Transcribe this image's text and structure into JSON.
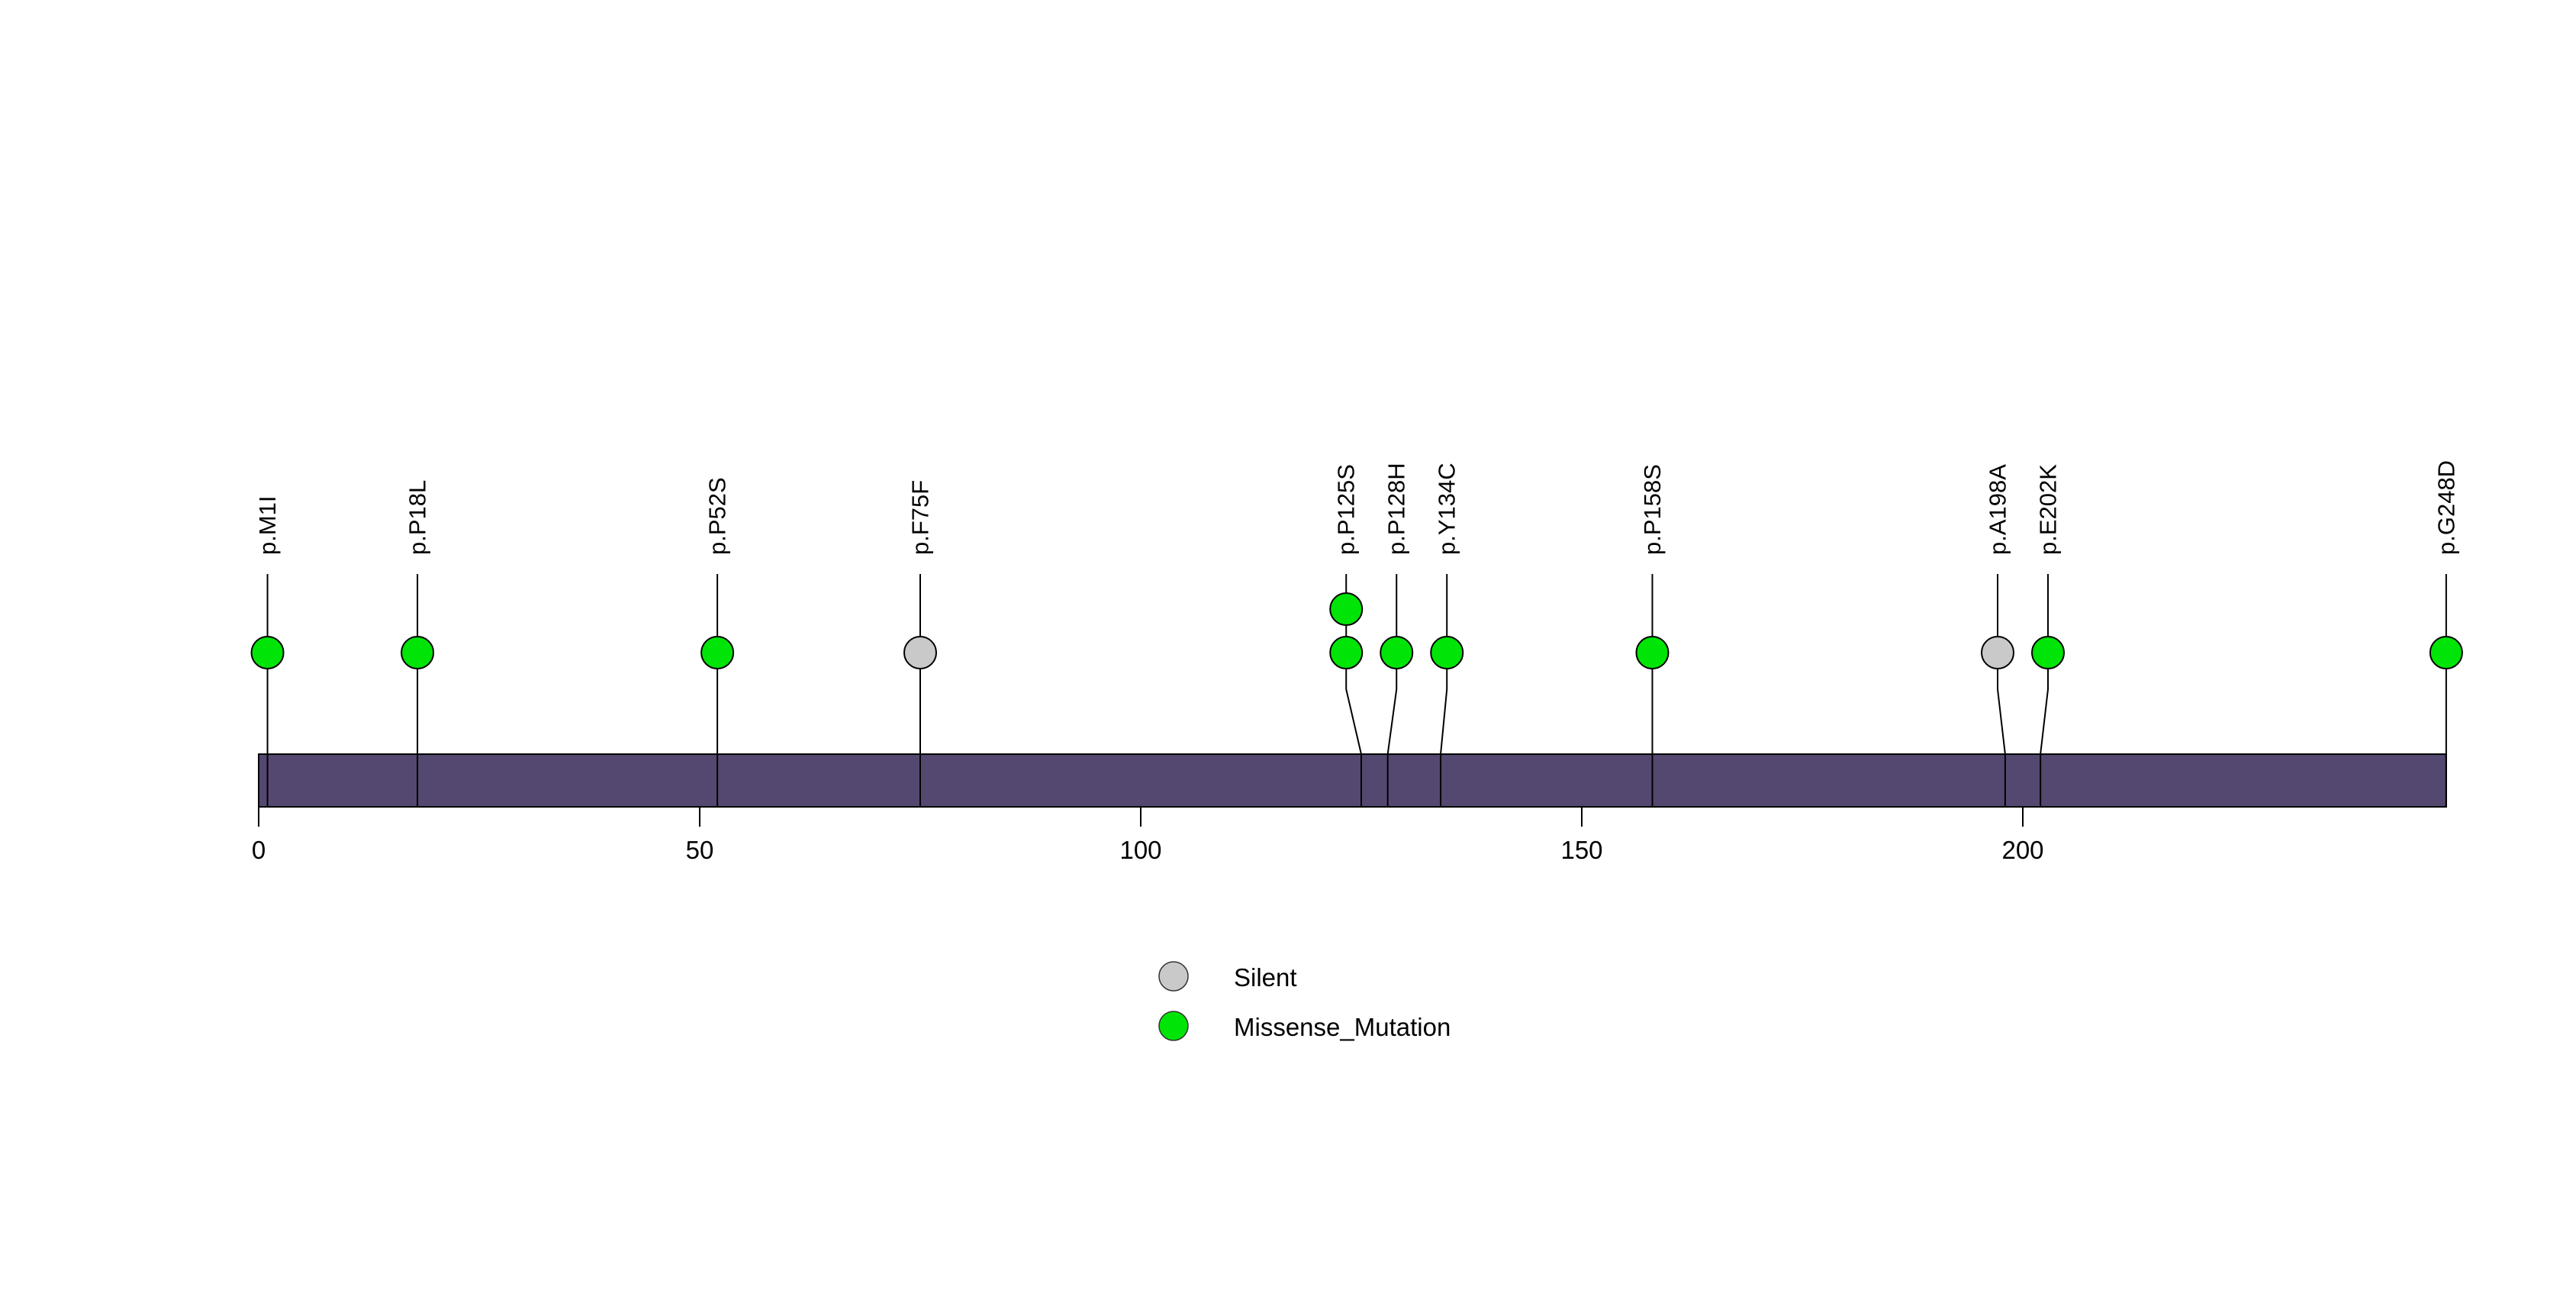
{
  "chart_data": {
    "type": "lollipop",
    "title": "",
    "xlabel": "",
    "ylabel": "",
    "axis_range": [
      0,
      248
    ],
    "axis_tick_labels": [
      "0",
      "50",
      "100",
      "150",
      "200"
    ],
    "axis_tick_values": [
      0,
      50,
      100,
      150,
      200
    ],
    "grid": false,
    "legend_position": "bottom-center",
    "protein": {
      "start": 0,
      "end": 248,
      "bar_color": "#544870"
    },
    "legend": [
      {
        "label": "Silent",
        "color": "#c9c9c9"
      },
      {
        "label": "Missense_Mutation",
        "color": "#00e407"
      }
    ],
    "mutations": [
      {
        "label": "p.M1I",
        "position": 1,
        "type": "Missense_Mutation",
        "count": 1
      },
      {
        "label": "p.P18L",
        "position": 18,
        "type": "Missense_Mutation",
        "count": 1
      },
      {
        "label": "p.P52S",
        "position": 52,
        "type": "Missense_Mutation",
        "count": 1
      },
      {
        "label": "p.F75F",
        "position": 75,
        "type": "Silent",
        "count": 1
      },
      {
        "label": "p.P125S",
        "position": 125,
        "type": "Missense_Mutation",
        "count": 2
      },
      {
        "label": "p.P128H",
        "position": 128,
        "type": "Missense_Mutation",
        "count": 1
      },
      {
        "label": "p.Y134C",
        "position": 134,
        "type": "Missense_Mutation",
        "count": 1
      },
      {
        "label": "p.P158S",
        "position": 158,
        "type": "Missense_Mutation",
        "count": 1
      },
      {
        "label": "p.A198A",
        "position": 198,
        "type": "Silent",
        "count": 1
      },
      {
        "label": "p.E202K",
        "position": 202,
        "type": "Missense_Mutation",
        "count": 1
      },
      {
        "label": "p.G248D",
        "position": 248,
        "type": "Missense_Mutation",
        "count": 1
      }
    ]
  }
}
